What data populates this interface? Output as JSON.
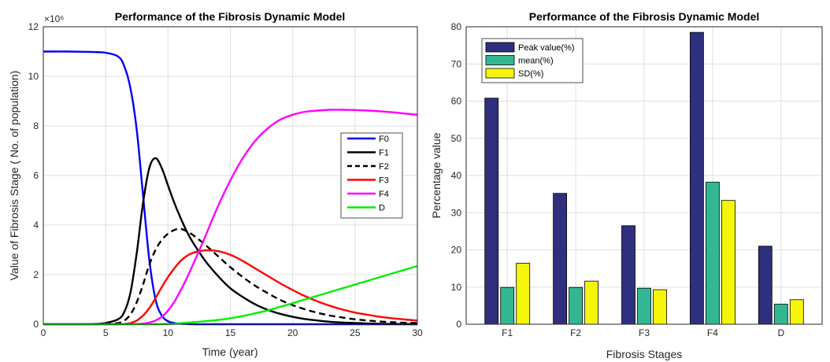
{
  "chart_data": [
    {
      "type": "line",
      "title": "Performance of the Fibrosis Dynamic Model",
      "xlabel": "Time (year)",
      "ylabel": "Value of Fibrosis Stage ( No. of population)",
      "y_exponent_label": "×10⁶",
      "xlim": [
        0,
        30
      ],
      "ylim": [
        0,
        12
      ],
      "xticks": [
        0,
        5,
        10,
        15,
        20,
        25,
        30
      ],
      "yticks": [
        0,
        2,
        4,
        6,
        8,
        10,
        12
      ],
      "grid": true,
      "legend_position": "right",
      "x": [
        0,
        2,
        4,
        5,
        6,
        6.5,
        7,
        7.5,
        8,
        8.5,
        9,
        9.5,
        10,
        10.5,
        11,
        11.5,
        12,
        13,
        14,
        15,
        16,
        17,
        18,
        19,
        20,
        21,
        22,
        23,
        24,
        25,
        26,
        27,
        28,
        29,
        30
      ],
      "series": [
        {
          "name": "F0",
          "color": "#0000ff",
          "dash": "solid",
          "values": [
            11.0,
            11.0,
            10.98,
            10.95,
            10.8,
            10.4,
            9.5,
            7.8,
            5.2,
            2.6,
            1.0,
            0.35,
            0.12,
            0.05,
            0.02,
            0.01,
            0,
            0,
            0,
            0,
            0,
            0,
            0,
            0,
            0,
            0,
            0,
            0,
            0,
            0,
            0,
            0,
            0,
            0,
            0
          ]
        },
        {
          "name": "F1",
          "color": "#000000",
          "dash": "solid",
          "values": [
            0,
            0,
            0.01,
            0.05,
            0.2,
            0.5,
            1.3,
            2.9,
            4.9,
            6.3,
            6.7,
            6.3,
            5.6,
            4.9,
            4.3,
            3.75,
            3.3,
            2.55,
            1.95,
            1.45,
            1.1,
            0.8,
            0.58,
            0.42,
            0.3,
            0.21,
            0.15,
            0.1,
            0.07,
            0.05,
            0.03,
            0.02,
            0.01,
            0.01,
            0
          ]
        },
        {
          "name": "F2",
          "color": "#000000",
          "dash": "dashed",
          "values": [
            0,
            0,
            0,
            0.01,
            0.05,
            0.15,
            0.4,
            0.9,
            1.6,
            2.4,
            3.0,
            3.4,
            3.65,
            3.8,
            3.85,
            3.75,
            3.6,
            3.2,
            2.75,
            2.3,
            1.9,
            1.55,
            1.25,
            0.98,
            0.77,
            0.6,
            0.46,
            0.35,
            0.27,
            0.2,
            0.15,
            0.11,
            0.08,
            0.06,
            0.05
          ]
        },
        {
          "name": "F3",
          "color": "#ff0000",
          "dash": "solid",
          "values": [
            0,
            0,
            0,
            0,
            0,
            0.01,
            0.05,
            0.15,
            0.35,
            0.65,
            1.05,
            1.5,
            1.9,
            2.25,
            2.55,
            2.75,
            2.88,
            2.98,
            2.95,
            2.8,
            2.55,
            2.25,
            1.95,
            1.65,
            1.38,
            1.13,
            0.92,
            0.74,
            0.59,
            0.47,
            0.38,
            0.3,
            0.24,
            0.19,
            0.15
          ]
        },
        {
          "name": "F4",
          "color": "#ff00ff",
          "dash": "solid",
          "values": [
            0,
            0,
            0,
            0,
            0,
            0,
            0,
            0.01,
            0.03,
            0.07,
            0.15,
            0.3,
            0.55,
            0.9,
            1.35,
            1.85,
            2.4,
            3.55,
            4.75,
            5.8,
            6.7,
            7.4,
            7.9,
            8.25,
            8.45,
            8.57,
            8.62,
            8.65,
            8.65,
            8.64,
            8.62,
            8.59,
            8.55,
            8.5,
            8.45
          ]
        },
        {
          "name": "D",
          "color": "#00ee00",
          "dash": "solid",
          "values": [
            0,
            0,
            0,
            0,
            0,
            0,
            0,
            0,
            0,
            0,
            0,
            0,
            0.01,
            0.02,
            0.04,
            0.06,
            0.08,
            0.12,
            0.17,
            0.24,
            0.33,
            0.44,
            0.56,
            0.7,
            0.85,
            1.0,
            1.15,
            1.3,
            1.45,
            1.6,
            1.75,
            1.9,
            2.05,
            2.2,
            2.35
          ]
        }
      ]
    },
    {
      "type": "bar",
      "title": "Performance of the Fibrosis Dynamic Model",
      "xlabel": "Fibrosis Stages",
      "ylabel": "Percentage value",
      "ylim": [
        0,
        80
      ],
      "yticks": [
        0,
        10,
        20,
        30,
        40,
        50,
        60,
        70,
        80
      ],
      "grid": true,
      "legend_position": "top-left",
      "categories": [
        "F1",
        "F2",
        "F3",
        "F4",
        "D"
      ],
      "series": [
        {
          "name": "Peak value(%)",
          "color": "#2e2f7e",
          "values": [
            60.8,
            35.2,
            26.5,
            78.5,
            21.0
          ]
        },
        {
          "name": "mean(%)",
          "color": "#33b792",
          "values": [
            9.9,
            9.9,
            9.7,
            38.2,
            5.4
          ]
        },
        {
          "name": "SD(%)",
          "color": "#f5f50c",
          "values": [
            16.4,
            11.6,
            9.3,
            33.3,
            6.6
          ]
        }
      ]
    }
  ]
}
